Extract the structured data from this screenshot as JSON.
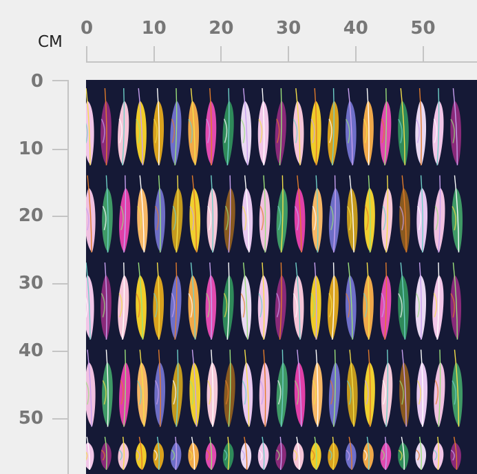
{
  "ruler": {
    "unit": "CM",
    "top_labels": [
      "0",
      "10",
      "20",
      "30",
      "40",
      "50"
    ],
    "left_labels": [
      "0",
      "10",
      "20",
      "30",
      "40",
      "50"
    ]
  },
  "fabric": {
    "background": "#151936",
    "feather_colors_row_a": [
      "#f2c6e8",
      "#8a2a7a",
      "#f5c5d8",
      "#f0cc2a",
      "#d9a21e",
      "#6f6fc9",
      "#f0a94a",
      "#e04bb0",
      "#2f8a5a",
      "#ead9f2"
    ],
    "feather_colors_row_b": [
      "#f0c0e0",
      "#3f9a66",
      "#e040a8",
      "#f6b766",
      "#6e6ec6",
      "#c49a1e",
      "#f0d030",
      "#f5c8d8",
      "#8a5a20",
      "#e9c9f0"
    ],
    "accent_colors": [
      "#f5e04a",
      "#e27c2a",
      "#6fd0c8",
      "#c8a0f0",
      "#ffffff",
      "#9be07a"
    ]
  }
}
